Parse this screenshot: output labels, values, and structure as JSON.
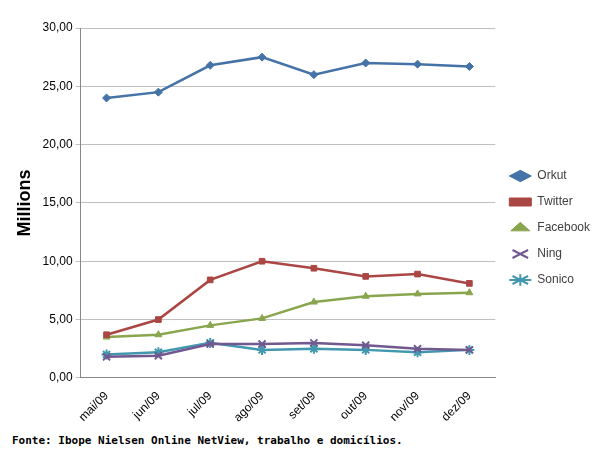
{
  "chart_data": {
    "type": "line",
    "y_label": "Millions",
    "source": "Fonte: Ibope Nielsen Online NetView, trabalho e domicílios.",
    "categories": [
      "mai/09",
      "jun/09",
      "jul/09",
      "ago/09",
      "set/09",
      "out/09",
      "nov/09",
      "dez/09"
    ],
    "series": [
      {
        "name": "Orkut",
        "color": "#4572a7",
        "marker": "diamond",
        "values": [
          24.0,
          24.5,
          26.8,
          27.5,
          26.0,
          27.0,
          26.9,
          26.7
        ]
      },
      {
        "name": "Twitter",
        "color": "#aa4643",
        "marker": "square",
        "values": [
          3.7,
          5.0,
          8.4,
          10.0,
          9.4,
          8.7,
          8.9,
          8.1
        ]
      },
      {
        "name": "Facebook",
        "color": "#89a54e",
        "marker": "triangle",
        "values": [
          3.5,
          3.7,
          4.5,
          5.1,
          6.5,
          7.0,
          7.2,
          7.3
        ]
      },
      {
        "name": "Ning",
        "color": "#71588f",
        "marker": "x",
        "values": [
          1.8,
          1.9,
          2.9,
          2.9,
          3.0,
          2.8,
          2.5,
          2.4
        ]
      },
      {
        "name": "Sonico",
        "color": "#4198af",
        "marker": "star",
        "values": [
          2.0,
          2.2,
          3.0,
          2.4,
          2.5,
          2.4,
          2.2,
          2.4
        ]
      }
    ],
    "ylim": [
      0,
      30
    ],
    "yticks": [
      {
        "value": 0,
        "label": "0,00"
      },
      {
        "value": 5,
        "label": "5,00"
      },
      {
        "value": 10,
        "label": "10,00"
      },
      {
        "value": 15,
        "label": "15,00"
      },
      {
        "value": 20,
        "label": "20,00"
      },
      {
        "value": 25,
        "label": "25,00"
      },
      {
        "value": 30,
        "label": "30,00"
      }
    ],
    "grid": true,
    "legend": "right"
  }
}
